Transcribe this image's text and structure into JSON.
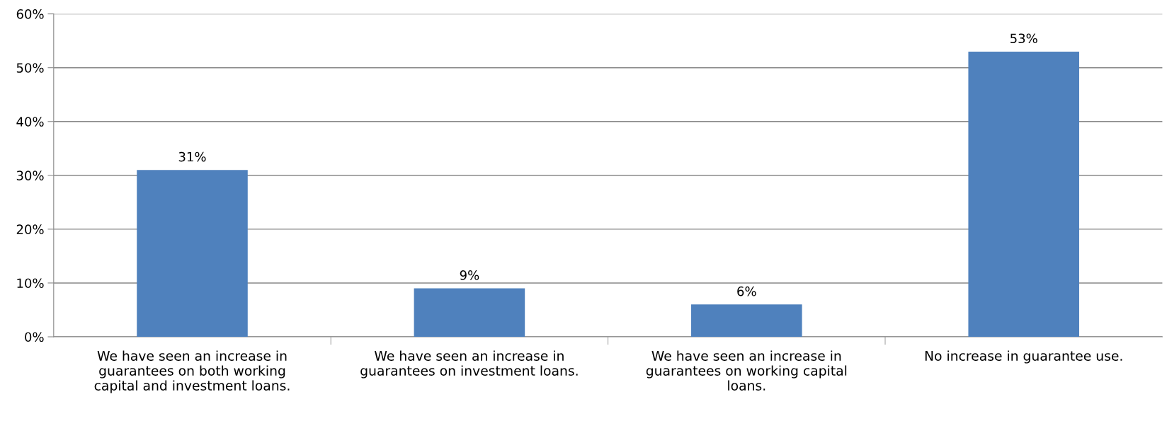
{
  "chart_data": {
    "type": "bar",
    "categories": [
      "We have seen an increase in guarantees on both working capital and investment loans.",
      "We have seen an increase in guarantees on investment loans.",
      "We have seen an increase in guarantees on working capital loans.",
      "No increase in guarantee use."
    ],
    "values": [
      31,
      9,
      6,
      53
    ],
    "value_labels": [
      "31%",
      "9%",
      "6%",
      "53%"
    ],
    "color": "#4f81bd",
    "ylim": [
      0,
      60
    ],
    "yticks": [
      {
        "value": 0,
        "label": "0%"
      },
      {
        "value": 10,
        "label": "10%"
      },
      {
        "value": 20,
        "label": "20%"
      },
      {
        "value": 30,
        "label": "30%"
      },
      {
        "value": 40,
        "label": "40%"
      },
      {
        "value": 50,
        "label": "50%"
      },
      {
        "value": 60,
        "label": "60%"
      }
    ],
    "grid": "y"
  }
}
